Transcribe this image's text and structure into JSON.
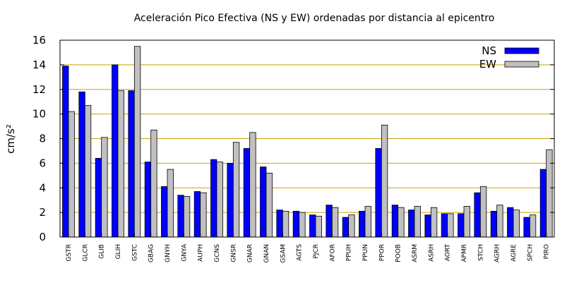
{
  "chart_data": {
    "type": "bar",
    "title": "Aceleración Pico Efectiva (NS y EW) ordenadas por distancia al epicentro",
    "ylabel": "cm/s²",
    "xlabel": "",
    "ylim": [
      0,
      16
    ],
    "yticks": [
      0,
      2,
      4,
      6,
      8,
      10,
      12,
      14,
      16
    ],
    "grid": "horizontal",
    "legend_position": "top-right",
    "categories": [
      "GSTR",
      "GLCR",
      "GLIB",
      "GLIH",
      "GSTC",
      "GBAG",
      "GNYH",
      "GNYA",
      "AUPH",
      "GCNS",
      "GNSR",
      "GNAR",
      "GNAN",
      "GSAM",
      "AGTS",
      "PJCR",
      "AFOR",
      "PPUH",
      "PPUN",
      "PPOR",
      "POOB",
      "ASRM",
      "ASRH",
      "AORT",
      "APMR",
      "STCH",
      "AGRH",
      "AGRE",
      "SPCH",
      "PIRO"
    ],
    "series": [
      {
        "name": "NS",
        "color": "#0000ff",
        "values": [
          13.9,
          11.8,
          6.4,
          14.0,
          11.9,
          6.1,
          4.1,
          3.4,
          3.7,
          6.3,
          6.0,
          7.2,
          5.7,
          2.2,
          2.1,
          1.8,
          2.6,
          1.6,
          2.1,
          7.2,
          2.6,
          2.2,
          1.8,
          1.9,
          1.9,
          3.6,
          2.1,
          2.4,
          1.6,
          5.5
        ]
      },
      {
        "name": "EW",
        "color": "#c0c0c0",
        "values": [
          10.2,
          10.7,
          8.1,
          11.9,
          15.5,
          8.7,
          5.5,
          3.3,
          3.6,
          6.1,
          7.7,
          8.5,
          5.2,
          2.1,
          2.0,
          1.7,
          2.4,
          1.8,
          2.5,
          9.1,
          2.4,
          2.5,
          2.4,
          1.9,
          2.5,
          4.1,
          2.6,
          2.2,
          1.8,
          7.1
        ]
      }
    ]
  }
}
